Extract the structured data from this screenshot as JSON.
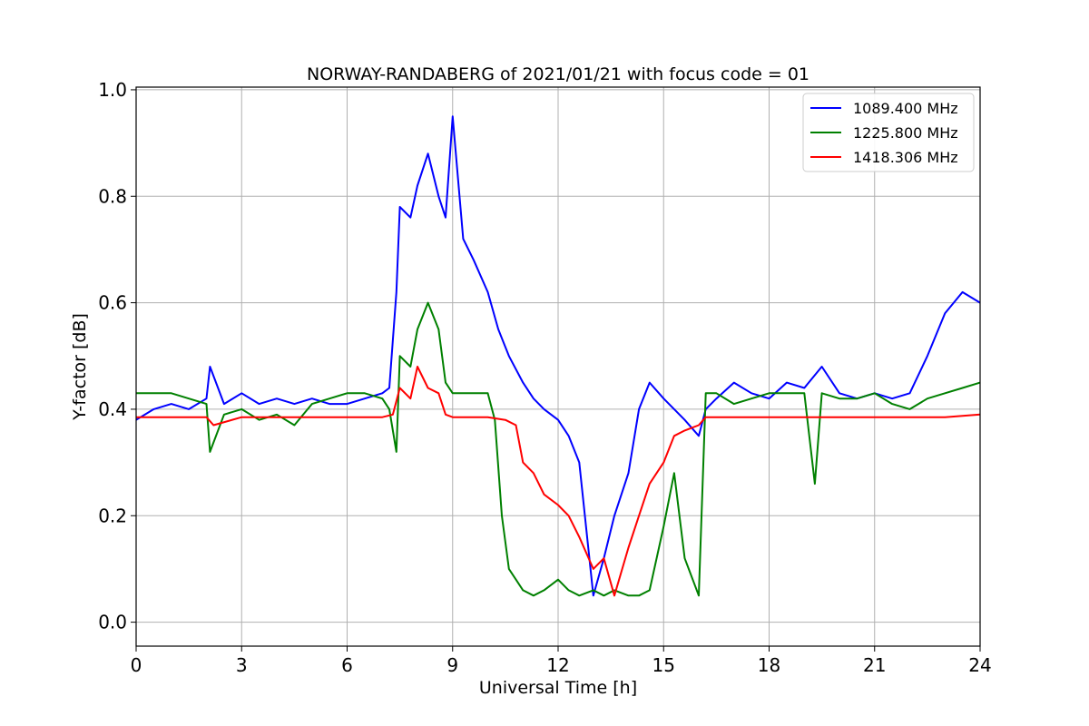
{
  "chart_data": {
    "type": "line",
    "title": "NORWAY-RANDABERG of 2021/01/21 with focus code = 01",
    "xlabel": "Universal Time [h]",
    "ylabel": "Y-factor [dB]",
    "xlim": [
      0,
      24
    ],
    "ylim": [
      -0.045,
      1.005
    ],
    "xticks": [
      0,
      3,
      6,
      9,
      12,
      15,
      18,
      21,
      24
    ],
    "yticks": [
      0.0,
      0.2,
      0.4,
      0.6,
      0.8,
      1.0
    ],
    "xtick_labels": [
      "0",
      "3",
      "6",
      "9",
      "12",
      "15",
      "18",
      "21",
      "24"
    ],
    "ytick_labels": [
      "0.0",
      "0.2",
      "0.4",
      "0.6",
      "0.8",
      "1.0"
    ],
    "grid": true,
    "legend_position": "top-right",
    "series": [
      {
        "name": "1089.400 MHz",
        "color": "#0000ff",
        "x": [
          0,
          0.5,
          1,
          1.5,
          2,
          2.1,
          2.5,
          3,
          3.5,
          4,
          4.5,
          5,
          5.5,
          6,
          6.5,
          7,
          7.2,
          7.4,
          7.5,
          7.8,
          8,
          8.3,
          8.6,
          8.8,
          9,
          9.3,
          9.6,
          10,
          10.3,
          10.6,
          11,
          11.3,
          11.6,
          12,
          12.3,
          12.6,
          13,
          13.3,
          13.6,
          14,
          14.3,
          14.6,
          15,
          15.3,
          15.6,
          16,
          16.2,
          16.5,
          17,
          17.5,
          18,
          18.5,
          19,
          19.5,
          20,
          20.5,
          21,
          21.5,
          22,
          22.5,
          23,
          23.5,
          24
        ],
        "y": [
          0.38,
          0.4,
          0.41,
          0.4,
          0.42,
          0.48,
          0.41,
          0.43,
          0.41,
          0.42,
          0.41,
          0.42,
          0.41,
          0.41,
          0.42,
          0.43,
          0.44,
          0.62,
          0.78,
          0.76,
          0.82,
          0.88,
          0.8,
          0.76,
          0.95,
          0.72,
          0.68,
          0.62,
          0.55,
          0.5,
          0.45,
          0.42,
          0.4,
          0.38,
          0.35,
          0.3,
          0.05,
          0.12,
          0.2,
          0.28,
          0.4,
          0.45,
          0.42,
          0.4,
          0.38,
          0.35,
          0.4,
          0.42,
          0.45,
          0.43,
          0.42,
          0.45,
          0.44,
          0.48,
          0.43,
          0.42,
          0.43,
          0.42,
          0.43,
          0.5,
          0.58,
          0.62,
          0.6
        ]
      },
      {
        "name": "1225.800 MHz",
        "color": "#008000",
        "x": [
          0,
          0.5,
          1,
          1.5,
          2,
          2.1,
          2.5,
          3,
          3.5,
          4,
          4.5,
          5,
          5.5,
          6,
          6.5,
          7,
          7.2,
          7.4,
          7.5,
          7.8,
          8,
          8.3,
          8.6,
          8.8,
          9,
          9.3,
          9.6,
          10,
          10.2,
          10.4,
          10.6,
          11,
          11.3,
          11.6,
          12,
          12.3,
          12.6,
          13,
          13.3,
          13.6,
          14,
          14.3,
          14.6,
          15,
          15.3,
          15.6,
          16,
          16.2,
          16.5,
          17,
          17.5,
          18,
          18.5,
          19,
          19.3,
          19.5,
          20,
          20.5,
          21,
          21.5,
          22,
          22.5,
          23,
          23.5,
          24
        ],
        "y": [
          0.43,
          0.43,
          0.43,
          0.42,
          0.41,
          0.32,
          0.39,
          0.4,
          0.38,
          0.39,
          0.37,
          0.41,
          0.42,
          0.43,
          0.43,
          0.42,
          0.4,
          0.32,
          0.5,
          0.48,
          0.55,
          0.6,
          0.55,
          0.45,
          0.43,
          0.43,
          0.43,
          0.43,
          0.38,
          0.2,
          0.1,
          0.06,
          0.05,
          0.06,
          0.08,
          0.06,
          0.05,
          0.06,
          0.05,
          0.06,
          0.05,
          0.05,
          0.06,
          0.18,
          0.28,
          0.12,
          0.05,
          0.43,
          0.43,
          0.41,
          0.42,
          0.43,
          0.43,
          0.43,
          0.26,
          0.43,
          0.42,
          0.42,
          0.43,
          0.41,
          0.4,
          0.42,
          0.43,
          0.44,
          0.45
        ]
      },
      {
        "name": "1418.306 MHz",
        "color": "#ff0000",
        "x": [
          0,
          1,
          2,
          2.2,
          3,
          4,
          5,
          6,
          7,
          7.3,
          7.5,
          7.8,
          8,
          8.3,
          8.6,
          8.8,
          9,
          9.5,
          10,
          10.5,
          10.8,
          11,
          11.3,
          11.6,
          12,
          12.3,
          12.6,
          13,
          13.3,
          13.6,
          14,
          14.3,
          14.6,
          15,
          15.3,
          15.6,
          16,
          16.2,
          16.5,
          17,
          18,
          19,
          20,
          21,
          22,
          23,
          24
        ],
        "y": [
          0.385,
          0.385,
          0.385,
          0.37,
          0.385,
          0.385,
          0.385,
          0.385,
          0.385,
          0.39,
          0.44,
          0.42,
          0.48,
          0.44,
          0.43,
          0.39,
          0.385,
          0.385,
          0.385,
          0.38,
          0.37,
          0.3,
          0.28,
          0.24,
          0.22,
          0.2,
          0.16,
          0.1,
          0.12,
          0.05,
          0.14,
          0.2,
          0.26,
          0.3,
          0.35,
          0.36,
          0.37,
          0.385,
          0.385,
          0.385,
          0.385,
          0.385,
          0.385,
          0.385,
          0.385,
          0.385,
          0.39
        ]
      }
    ]
  }
}
